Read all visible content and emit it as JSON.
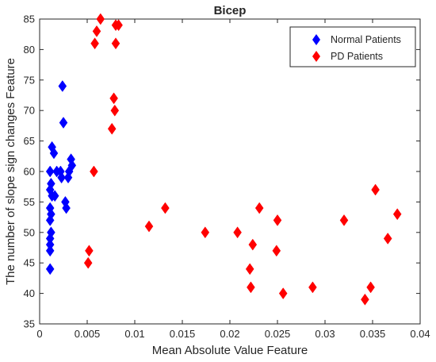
{
  "chart_data": {
    "type": "scatter",
    "title": "Bicep",
    "xlabel": "Mean Absolute Value Feature",
    "ylabel": "The number of slope sign changes Feature",
    "xlim": [
      0,
      0.04
    ],
    "ylim": [
      35,
      85
    ],
    "x_ticks": [
      "0",
      "0.005",
      "0.01",
      "0.015",
      "0.02",
      "0.025",
      "0.03",
      "0.035",
      "0.04"
    ],
    "y_ticks": [
      "35",
      "40",
      "45",
      "50",
      "55",
      "60",
      "65",
      "70",
      "75",
      "80",
      "85"
    ],
    "grid": false,
    "legend_position": "top-right",
    "marker": "diamond",
    "series": [
      {
        "name": "Normal Patients",
        "color": "#0000ff",
        "points": [
          [
            0.0011,
            44
          ],
          [
            0.0011,
            47
          ],
          [
            0.0011,
            48
          ],
          [
            0.0011,
            49
          ],
          [
            0.0012,
            50
          ],
          [
            0.0011,
            52
          ],
          [
            0.0012,
            53
          ],
          [
            0.0011,
            54
          ],
          [
            0.0013,
            56
          ],
          [
            0.0011,
            57
          ],
          [
            0.0012,
            58
          ],
          [
            0.0011,
            60
          ],
          [
            0.0013,
            64
          ],
          [
            0.0015,
            63
          ],
          [
            0.0016,
            56
          ],
          [
            0.0018,
            60
          ],
          [
            0.0022,
            60
          ],
          [
            0.0023,
            59
          ],
          [
            0.0024,
            74
          ],
          [
            0.0025,
            68
          ],
          [
            0.0027,
            55
          ],
          [
            0.0028,
            54
          ],
          [
            0.003,
            59
          ],
          [
            0.0031,
            60
          ],
          [
            0.0033,
            62
          ],
          [
            0.0034,
            61
          ]
        ]
      },
      {
        "name": "PD Patients",
        "color": "#ff0000",
        "points": [
          [
            0.0051,
            45
          ],
          [
            0.0052,
            47
          ],
          [
            0.0057,
            60
          ],
          [
            0.0058,
            81
          ],
          [
            0.006,
            83
          ],
          [
            0.0064,
            85
          ],
          [
            0.0076,
            67
          ],
          [
            0.0078,
            72
          ],
          [
            0.0079,
            70
          ],
          [
            0.008,
            84
          ],
          [
            0.008,
            81
          ],
          [
            0.0083,
            84
          ],
          [
            0.0115,
            51
          ],
          [
            0.0132,
            54
          ],
          [
            0.0174,
            50
          ],
          [
            0.0208,
            50
          ],
          [
            0.0221,
            44
          ],
          [
            0.0222,
            41
          ],
          [
            0.0224,
            48
          ],
          [
            0.0231,
            54
          ],
          [
            0.025,
            52
          ],
          [
            0.0249,
            47
          ],
          [
            0.0256,
            40
          ],
          [
            0.0287,
            41
          ],
          [
            0.032,
            52
          ],
          [
            0.0342,
            39
          ],
          [
            0.0348,
            41
          ],
          [
            0.0353,
            57
          ],
          [
            0.0366,
            49
          ],
          [
            0.0376,
            53
          ]
        ]
      }
    ]
  }
}
